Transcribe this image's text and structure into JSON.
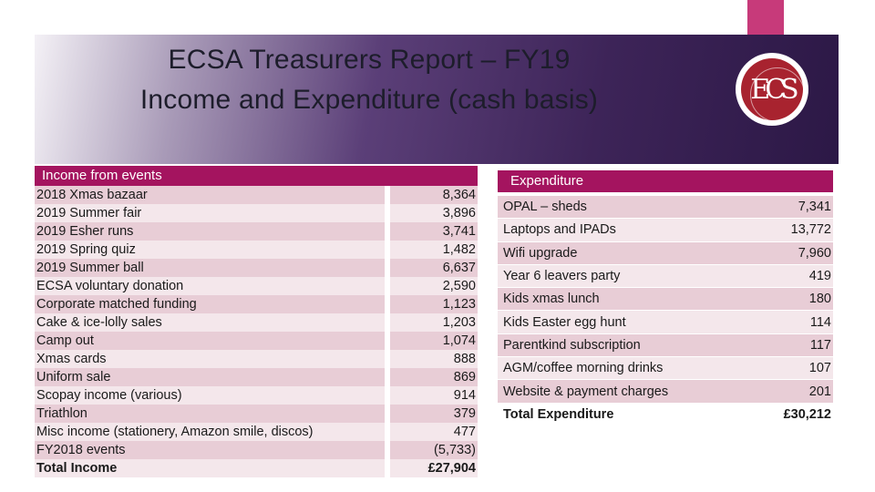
{
  "title": {
    "line1": "ECSA Treasurers Report – FY19",
    "line2": "Income and Expenditure (cash basis)"
  },
  "logo": {
    "text": "ECS"
  },
  "income": {
    "header": "Income from events",
    "rows": [
      {
        "label": "2018 Xmas bazaar",
        "value": "8,364"
      },
      {
        "label": "2019 Summer fair",
        "value": "3,896"
      },
      {
        "label": "2019 Esher runs",
        "value": "3,741"
      },
      {
        "label": "2019 Spring quiz",
        "value": "1,482"
      },
      {
        "label": "2019 Summer ball",
        "value": "6,637"
      },
      {
        "label": "ECSA voluntary donation",
        "value": "2,590"
      },
      {
        "label": "Corporate matched funding",
        "value": "1,123"
      },
      {
        "label": "Cake & ice-lolly sales",
        "value": "1,203"
      },
      {
        "label": "Camp out",
        "value": "1,074"
      },
      {
        "label": "Xmas cards",
        "value": "888"
      },
      {
        "label": "Uniform sale",
        "value": "869"
      },
      {
        "label": "Scopay income (various)",
        "value": "914"
      },
      {
        "label": "Triathlon",
        "value": "379"
      },
      {
        "label": "Misc income (stationery, Amazon smile, discos)",
        "value": "477"
      },
      {
        "label": "FY2018 events",
        "value": "(5,733)"
      }
    ],
    "total_label": "Total Income",
    "total_value": "£27,904"
  },
  "expenditure": {
    "header": "Expenditure",
    "rows": [
      {
        "label": "OPAL – sheds",
        "value": "7,341"
      },
      {
        "label": "Laptops and IPADs",
        "value": "13,772"
      },
      {
        "label": "Wifi upgrade",
        "value": "7,960"
      },
      {
        "label": "Year 6 leavers party",
        "value": "419"
      },
      {
        "label": "Kids xmas lunch",
        "value": "180"
      },
      {
        "label": "Kids Easter egg hunt",
        "value": "114"
      },
      {
        "label": "Parentkind subscription",
        "value": "117"
      },
      {
        "label": "AGM/coffee morning drinks",
        "value": "107"
      },
      {
        "label": "Website & payment charges",
        "value": "201"
      }
    ],
    "total_label": "Total Expenditure",
    "total_value": "£30,212"
  }
}
